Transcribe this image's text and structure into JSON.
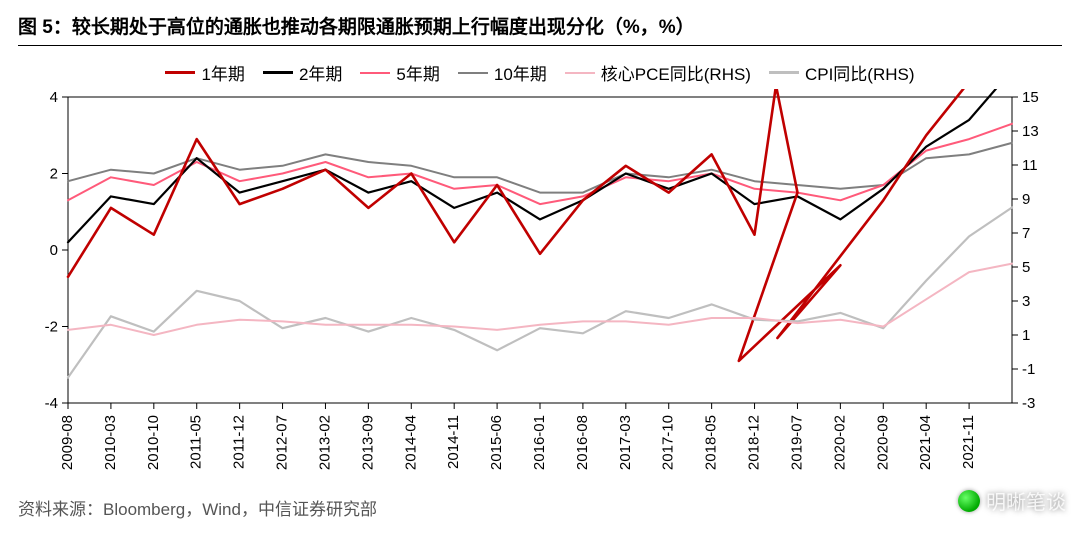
{
  "title": "图 5：较长期处于高位的通胀也推动各期限通胀预期上行幅度出现分化（%，%）",
  "source": "资料来源：Bloomberg，Wind，中信证券研究部",
  "watermark": "明晰笔谈",
  "chart": {
    "type": "line",
    "background_color": "#ffffff",
    "axis_color": "#000000",
    "tick_fontsize": 15,
    "title_fontsize": 19,
    "y_left": {
      "min": -4,
      "max": 4,
      "ticks": [
        -4,
        -2,
        0,
        2,
        4
      ]
    },
    "y_right": {
      "min": -3,
      "max": 15,
      "ticks": [
        -3,
        -1,
        1,
        3,
        5,
        7,
        9,
        11,
        13,
        15
      ]
    },
    "x_labels": [
      "2009-08",
      "2010-03",
      "2010-10",
      "2011-05",
      "2011-12",
      "2012-07",
      "2013-02",
      "2013-09",
      "2014-04",
      "2014-11",
      "2015-06",
      "2016-01",
      "2016-08",
      "2017-03",
      "2017-10",
      "2018-05",
      "2018-12",
      "2019-07",
      "2020-02",
      "2020-09",
      "2021-04",
      "2021-11"
    ],
    "legend": [
      {
        "label": "1年期",
        "color": "#c00000",
        "width": 2.4
      },
      {
        "label": "2年期",
        "color": "#000000",
        "width": 2.2
      },
      {
        "label": "5年期",
        "color": "#ff5a7a",
        "width": 2.0
      },
      {
        "label": "10年期",
        "color": "#7f7f7f",
        "width": 2.0
      },
      {
        "label": "核心PCE同比(RHS)",
        "color": "#f4b6c2",
        "width": 2.0
      },
      {
        "label": "CPI同比(RHS)",
        "color": "#bfbfbf",
        "width": 2.2
      }
    ],
    "series": [
      {
        "name": "10年期",
        "axis": "left",
        "color": "#7f7f7f",
        "width": 2.0,
        "values": [
          1.8,
          2.1,
          2.0,
          2.4,
          2.1,
          2.2,
          2.5,
          2.3,
          2.2,
          1.9,
          1.9,
          1.5,
          1.5,
          2.0,
          1.9,
          2.1,
          1.8,
          1.7,
          1.6,
          1.7,
          2.4,
          2.5,
          2.8
        ]
      },
      {
        "name": "5年期",
        "axis": "left",
        "color": "#ff5a7a",
        "width": 2.0,
        "values": [
          1.3,
          1.9,
          1.7,
          2.3,
          1.8,
          2.0,
          2.3,
          1.9,
          2.0,
          1.6,
          1.7,
          1.2,
          1.4,
          1.9,
          1.8,
          2.0,
          1.6,
          1.5,
          1.3,
          1.7,
          2.6,
          2.9,
          3.3
        ]
      },
      {
        "name": "2年期",
        "axis": "left",
        "color": "#000000",
        "width": 2.2,
        "values": [
          0.2,
          1.4,
          1.2,
          2.4,
          1.5,
          1.8,
          2.1,
          1.5,
          1.8,
          1.1,
          1.5,
          0.8,
          1.3,
          2.0,
          1.6,
          2.0,
          1.2,
          1.4,
          0.8,
          1.6,
          2.7,
          3.4,
          4.7
        ]
      },
      {
        "name": "1年期",
        "axis": "left",
        "color": "#c00000",
        "width": 2.6,
        "values": [
          -0.7,
          1.1,
          0.4,
          2.9,
          1.2,
          1.6,
          2.1,
          1.1,
          2.0,
          0.2,
          1.7,
          -0.1,
          1.3,
          2.2,
          1.5,
          2.5,
          0.4,
          1.5,
          -0.4,
          1.3,
          3.0,
          4.4,
          5.3
        ]
      },
      {
        "name": "CPI同比(RHS)",
        "axis": "right",
        "color": "#bfbfbf",
        "width": 2.2,
        "values": [
          -1.5,
          2.1,
          1.2,
          3.6,
          3.0,
          1.4,
          2.0,
          1.2,
          2.0,
          1.3,
          0.1,
          1.4,
          1.1,
          2.4,
          2.0,
          2.8,
          1.9,
          1.8,
          2.3,
          1.4,
          4.2,
          6.8,
          8.5
        ]
      },
      {
        "name": "核心PCE同比(RHS)",
        "axis": "right",
        "color": "#f4b6c2",
        "width": 2.0,
        "values": [
          1.3,
          1.6,
          1.0,
          1.6,
          1.9,
          1.8,
          1.6,
          1.6,
          1.6,
          1.5,
          1.3,
          1.6,
          1.8,
          1.8,
          1.6,
          2.0,
          2.0,
          1.7,
          1.9,
          1.5,
          3.1,
          4.7,
          5.2
        ]
      }
    ],
    "extra_points": {
      "comment": "notable spikes/dips for 1年期 mid-2019 and early-2020",
      "one_year_spike_2019": {
        "x_hint": "2019-04",
        "y": 4.3
      },
      "one_year_dip_2019": {
        "x_hint": "2019-09",
        "y": -2.9
      },
      "one_year_dip_2020": {
        "x_hint": "2020-04",
        "y": -2.3
      }
    }
  }
}
